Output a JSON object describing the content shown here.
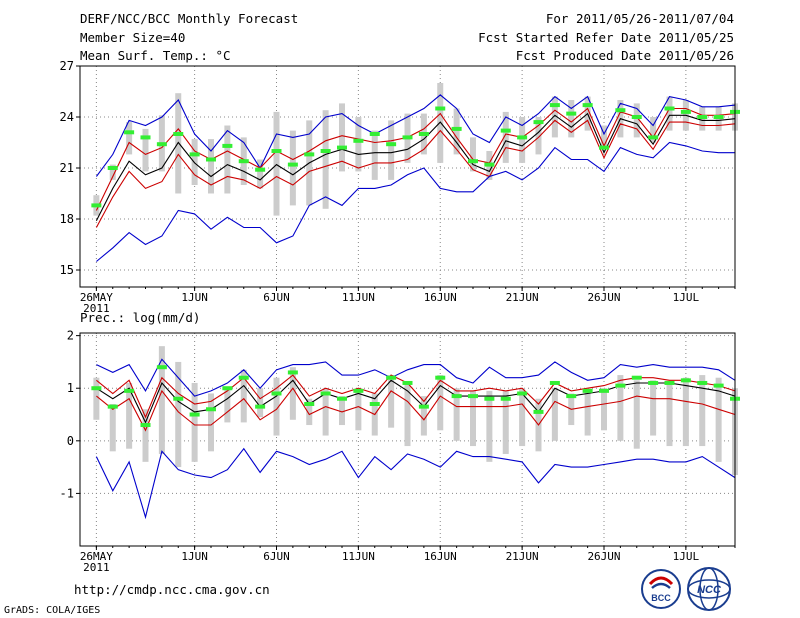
{
  "header": {
    "title": "DERF/NCC/BCC Monthly Forecast",
    "member_size": "Member Size=40",
    "variable": "Mean Surf. Temp.: °C",
    "period": "For 2011/05/26-2011/07/04",
    "start_date": "Fcst Started Refer Date 2011/05/25",
    "produced_date": "Fcst Produced Date 2011/05/26"
  },
  "footer": {
    "url": "http://cmdp.ncc.cma.gov.cn",
    "credit": "GrADS: COLA/IGES",
    "logo_bcc": "BCC",
    "logo_ncc": "NCC"
  },
  "colors": {
    "max_line": "#0000cc",
    "min_line": "#0000cc",
    "upper_line": "#cc0000",
    "lower_line": "#cc0000",
    "mean_line": "#000000",
    "box": "#cccccc",
    "observed": "#33ee33",
    "grid": "#888888"
  },
  "chart_data": [
    {
      "type": "line",
      "title": "Mean Surf. Temp.: °C",
      "days": 40,
      "ylim": [
        14,
        27
      ],
      "yticks": [
        15,
        18,
        21,
        24,
        27
      ],
      "xticks": [
        {
          "day": 0,
          "label": "26MAY",
          "sub": "2011"
        },
        {
          "day": 6,
          "label": "1JUN"
        },
        {
          "day": 11,
          "label": "6JUN"
        },
        {
          "day": 16,
          "label": "11JUN"
        },
        {
          "day": 21,
          "label": "16JUN"
        },
        {
          "day": 26,
          "label": "21JUN"
        },
        {
          "day": 31,
          "label": "26JUN"
        },
        {
          "day": 36,
          "label": "1JUL"
        }
      ],
      "series": [
        {
          "name": "max",
          "role": "max_line",
          "values": [
            20.5,
            21.8,
            23.8,
            23.5,
            24.0,
            25.0,
            23.0,
            22.0,
            23.2,
            22.5,
            21.0,
            23.0,
            22.8,
            23.0,
            24.0,
            24.2,
            23.5,
            23.0,
            23.5,
            24.0,
            24.5,
            25.3,
            24.5,
            23.0,
            22.5,
            24.0,
            23.5,
            24.2,
            25.2,
            24.5,
            25.2,
            23.0,
            24.8,
            24.5,
            23.5,
            25.2,
            25.0,
            24.6,
            24.6,
            24.7
          ]
        },
        {
          "name": "upper",
          "role": "upper_line",
          "values": [
            18.5,
            20.5,
            22.5,
            21.8,
            22.2,
            23.3,
            22.0,
            21.5,
            22.0,
            21.5,
            21.0,
            22.0,
            21.5,
            22.0,
            22.6,
            22.9,
            22.7,
            22.5,
            22.6,
            22.8,
            23.3,
            24.2,
            22.8,
            21.5,
            21.3,
            23.0,
            22.8,
            23.5,
            24.4,
            23.7,
            24.5,
            22.3,
            24.3,
            24.0,
            22.8,
            24.5,
            24.5,
            24.1,
            24.1,
            24.2
          ]
        },
        {
          "name": "mean",
          "role": "mean_line",
          "values": [
            17.9,
            19.8,
            21.4,
            20.6,
            21.0,
            22.5,
            21.3,
            20.5,
            21.2,
            20.8,
            20.3,
            21.2,
            20.6,
            21.3,
            21.8,
            22.1,
            21.8,
            21.9,
            21.9,
            22.1,
            22.7,
            23.7,
            22.5,
            21.2,
            20.8,
            22.6,
            22.3,
            23.1,
            24.1,
            23.4,
            24.2,
            21.9,
            23.9,
            23.6,
            22.4,
            24.1,
            24.1,
            23.8,
            23.8,
            23.9
          ]
        },
        {
          "name": "lower",
          "role": "lower_line",
          "values": [
            17.5,
            19.3,
            20.8,
            19.8,
            20.2,
            21.8,
            20.6,
            20.0,
            20.5,
            20.3,
            19.8,
            20.5,
            20.0,
            20.8,
            21.1,
            21.4,
            21.0,
            21.3,
            21.3,
            21.5,
            22.1,
            23.2,
            22.1,
            20.9,
            20.5,
            22.2,
            22.0,
            22.8,
            23.8,
            23.1,
            23.8,
            21.6,
            23.6,
            23.3,
            22.1,
            23.7,
            23.7,
            23.5,
            23.5,
            23.6
          ]
        },
        {
          "name": "min",
          "role": "min_line",
          "values": [
            15.5,
            16.3,
            17.2,
            16.5,
            17.0,
            18.5,
            18.3,
            17.4,
            18.1,
            17.5,
            17.5,
            16.6,
            17.0,
            18.8,
            19.3,
            18.8,
            19.8,
            19.8,
            20.0,
            20.6,
            21.0,
            19.8,
            19.6,
            19.6,
            20.5,
            20.8,
            20.3,
            21.0,
            22.2,
            21.5,
            21.5,
            20.8,
            22.2,
            21.8,
            21.6,
            22.5,
            22.3,
            22.0,
            21.9,
            21.9
          ]
        }
      ],
      "boxes": {
        "low": [
          18.2,
          20.3,
          21.8,
          20.8,
          20.8,
          19.5,
          20.0,
          19.5,
          19.5,
          20.0,
          19.8,
          18.2,
          18.8,
          18.8,
          18.6,
          20.8,
          20.8,
          20.3,
          20.3,
          21.3,
          21.8,
          21.3,
          21.8,
          20.8,
          20.3,
          21.3,
          21.3,
          21.8,
          22.8,
          22.8,
          23.2,
          22.3,
          22.8,
          22.8,
          22.5,
          23.2,
          23.2,
          23.2,
          23.2,
          23.2
        ],
        "high": [
          19.4,
          21.2,
          23.7,
          23.3,
          24.1,
          25.4,
          22.7,
          22.7,
          23.5,
          22.8,
          21.5,
          24.3,
          23.2,
          23.8,
          24.4,
          24.8,
          24.0,
          23.2,
          23.8,
          24.2,
          24.2,
          26.0,
          24.5,
          22.8,
          22.0,
          24.3,
          24.0,
          24.0,
          25.2,
          25.0,
          25.2,
          23.5,
          25.0,
          24.8,
          24.0,
          25.2,
          25.0,
          24.6,
          24.6,
          24.8
        ]
      },
      "observed": [
        18.8,
        21.0,
        23.1,
        22.8,
        22.4,
        23.0,
        21.8,
        21.5,
        22.3,
        21.4,
        20.9,
        22.0,
        21.2,
        21.8,
        22.0,
        22.2,
        22.6,
        23.0,
        22.4,
        22.8,
        23.0,
        24.5,
        23.3,
        21.4,
        21.2,
        23.2,
        22.8,
        23.7,
        24.7,
        24.2,
        24.7,
        22.2,
        24.4,
        24.0,
        22.8,
        24.5,
        24.3,
        24.0,
        24.0,
        24.3
      ]
    },
    {
      "type": "line",
      "title": "Prec.: log(mm/d)",
      "days": 40,
      "ylim": [
        -2,
        2.05
      ],
      "yticks": [
        -1,
        0,
        1,
        2
      ],
      "xticks": [
        {
          "day": 0,
          "label": "26MAY",
          "sub": "2011"
        },
        {
          "day": 6,
          "label": "1JUN"
        },
        {
          "day": 11,
          "label": "6JUN"
        },
        {
          "day": 16,
          "label": "11JUN"
        },
        {
          "day": 21,
          "label": "16JUN"
        },
        {
          "day": 26,
          "label": "21JUN"
        },
        {
          "day": 31,
          "label": "26JUN"
        },
        {
          "day": 36,
          "label": "1JUL"
        }
      ],
      "series": [
        {
          "name": "max",
          "role": "max_line",
          "values": [
            1.45,
            1.3,
            1.45,
            0.95,
            1.55,
            1.2,
            0.85,
            0.95,
            1.1,
            1.35,
            1.0,
            1.35,
            1.45,
            1.45,
            1.5,
            1.25,
            1.25,
            1.35,
            1.2,
            1.35,
            1.45,
            1.45,
            1.2,
            1.1,
            1.4,
            1.2,
            1.2,
            1.25,
            1.5,
            1.3,
            1.15,
            1.2,
            1.45,
            1.4,
            1.45,
            1.4,
            1.4,
            1.4,
            1.35,
            1.15
          ]
        },
        {
          "name": "upper",
          "role": "upper_line",
          "values": [
            1.15,
            0.9,
            1.15,
            0.45,
            1.2,
            0.9,
            0.7,
            0.75,
            0.95,
            1.2,
            0.8,
            1.0,
            1.25,
            0.85,
            1.0,
            0.9,
            1.0,
            0.9,
            1.25,
            1.1,
            0.75,
            1.15,
            0.95,
            0.95,
            1.0,
            0.95,
            1.0,
            0.7,
            1.1,
            0.95,
            1.0,
            1.05,
            1.15,
            1.2,
            1.2,
            1.15,
            1.15,
            1.1,
            1.05,
            0.95
          ]
        },
        {
          "name": "mean",
          "role": "mean_line",
          "values": [
            1.0,
            0.8,
            1.0,
            0.35,
            1.1,
            0.75,
            0.55,
            0.6,
            0.8,
            1.05,
            0.65,
            0.85,
            1.15,
            0.7,
            0.9,
            0.8,
            0.9,
            0.8,
            1.15,
            0.95,
            0.65,
            1.05,
            0.85,
            0.85,
            0.85,
            0.85,
            0.9,
            0.55,
            1.0,
            0.85,
            0.9,
            0.95,
            1.05,
            1.1,
            1.1,
            1.1,
            1.05,
            1.0,
            0.95,
            0.85
          ]
        },
        {
          "name": "lower",
          "role": "lower_line",
          "values": [
            0.85,
            0.6,
            0.8,
            0.2,
            0.95,
            0.55,
            0.3,
            0.3,
            0.55,
            0.8,
            0.4,
            0.6,
            1.0,
            0.5,
            0.65,
            0.55,
            0.65,
            0.5,
            0.95,
            0.75,
            0.4,
            0.85,
            0.65,
            0.65,
            0.65,
            0.65,
            0.7,
            0.3,
            0.75,
            0.6,
            0.65,
            0.7,
            0.75,
            0.85,
            0.8,
            0.8,
            0.75,
            0.7,
            0.6,
            0.5
          ]
        },
        {
          "name": "min",
          "role": "min_line",
          "values": [
            -0.3,
            -0.95,
            -0.4,
            -1.45,
            -0.2,
            -0.55,
            -0.65,
            -0.7,
            -0.55,
            -0.15,
            -0.6,
            -0.2,
            -0.3,
            -0.45,
            -0.35,
            -0.2,
            -0.7,
            -0.3,
            -0.55,
            -0.25,
            -0.35,
            -0.5,
            -0.2,
            -0.3,
            -0.3,
            -0.35,
            -0.4,
            -0.8,
            -0.45,
            -0.5,
            -0.5,
            -0.45,
            -0.4,
            -0.35,
            -0.35,
            -0.4,
            -0.4,
            -0.3,
            -0.5,
            -0.7
          ]
        },
        {
          "name": "obs_dummy",
          "role": "none",
          "values": []
        }
      ],
      "boxes": {
        "low": [
          0.4,
          -0.2,
          -0.15,
          -0.4,
          -0.25,
          -0.5,
          -0.4,
          -0.2,
          0.35,
          0.35,
          0.45,
          0.1,
          0.4,
          0.3,
          0.1,
          0.3,
          0.2,
          0.1,
          0.25,
          -0.1,
          0.1,
          0.2,
          0.0,
          -0.1,
          -0.4,
          -0.25,
          -0.1,
          -0.2,
          0.0,
          0.3,
          0.1,
          0.2,
          0.0,
          -0.15,
          0.1,
          -0.1,
          -0.1,
          -0.1,
          -0.4,
          -0.65
        ],
        "high": [
          1.2,
          0.7,
          1.1,
          0.6,
          1.8,
          1.5,
          1.1,
          0.9,
          1.0,
          1.35,
          1.0,
          1.2,
          1.4,
          0.8,
          1.0,
          0.85,
          0.95,
          0.9,
          1.25,
          1.1,
          0.85,
          1.25,
          1.0,
          0.95,
          0.95,
          0.95,
          1.0,
          0.8,
          1.0,
          0.9,
          0.95,
          1.0,
          1.25,
          1.15,
          1.15,
          1.1,
          1.2,
          1.25,
          1.2,
          1.0
        ]
      },
      "observed": [
        1.0,
        0.65,
        0.95,
        0.3,
        1.4,
        0.8,
        0.5,
        0.6,
        1.0,
        1.2,
        0.65,
        0.9,
        1.3,
        0.7,
        0.9,
        0.8,
        0.95,
        0.7,
        1.2,
        1.1,
        0.65,
        1.2,
        0.85,
        0.85,
        0.8,
        0.8,
        0.9,
        0.55,
        1.1,
        0.85,
        0.95,
        0.95,
        1.05,
        1.2,
        1.1,
        1.1,
        1.15,
        1.1,
        1.05,
        0.8
      ]
    }
  ]
}
